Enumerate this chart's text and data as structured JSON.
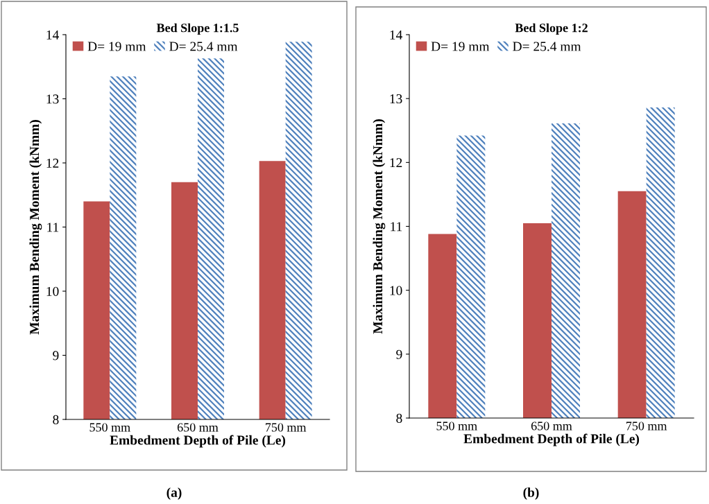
{
  "chart_data": [
    {
      "type": "bar",
      "title": "Bed Slope 1:1.5",
      "xlabel": "Embedment Depth of Pile (Le)",
      "ylabel": "Maximum Bending Moment (kNmm)",
      "categories": [
        "550 mm",
        "650 mm",
        "750 mm"
      ],
      "series": [
        {
          "name": "D= 19 mm",
          "color": "#c0504d",
          "values": [
            11.4,
            11.7,
            12.03
          ]
        },
        {
          "name": "D= 25.4 mm",
          "color": "#4f81bd",
          "values": [
            13.35,
            13.63,
            13.89
          ]
        }
      ],
      "ylim": [
        8,
        14
      ],
      "yticks": [
        8,
        9,
        10,
        11,
        12,
        13,
        14
      ],
      "grid": false,
      "legend": "top left",
      "annotations": [
        "(a)"
      ]
    },
    {
      "type": "bar",
      "title": "Bed Slope 1:2",
      "xlabel": "Embedment Depth of Pile (Le)",
      "ylabel": "Maximum Bending Moment (kNmm)",
      "categories": [
        "550 mm",
        "650 mm",
        "750 mm"
      ],
      "series": [
        {
          "name": "D= 19 mm",
          "color": "#c0504d",
          "values": [
            10.88,
            11.05,
            11.55
          ]
        },
        {
          "name": "D= 25.4 mm",
          "color": "#4f81bd",
          "values": [
            12.42,
            12.61,
            12.86
          ]
        }
      ],
      "ylim": [
        8,
        14
      ],
      "yticks": [
        8,
        9,
        10,
        11,
        12,
        13,
        14
      ],
      "grid": false,
      "legend": "top left",
      "annotations": [
        "(b)"
      ]
    }
  ]
}
